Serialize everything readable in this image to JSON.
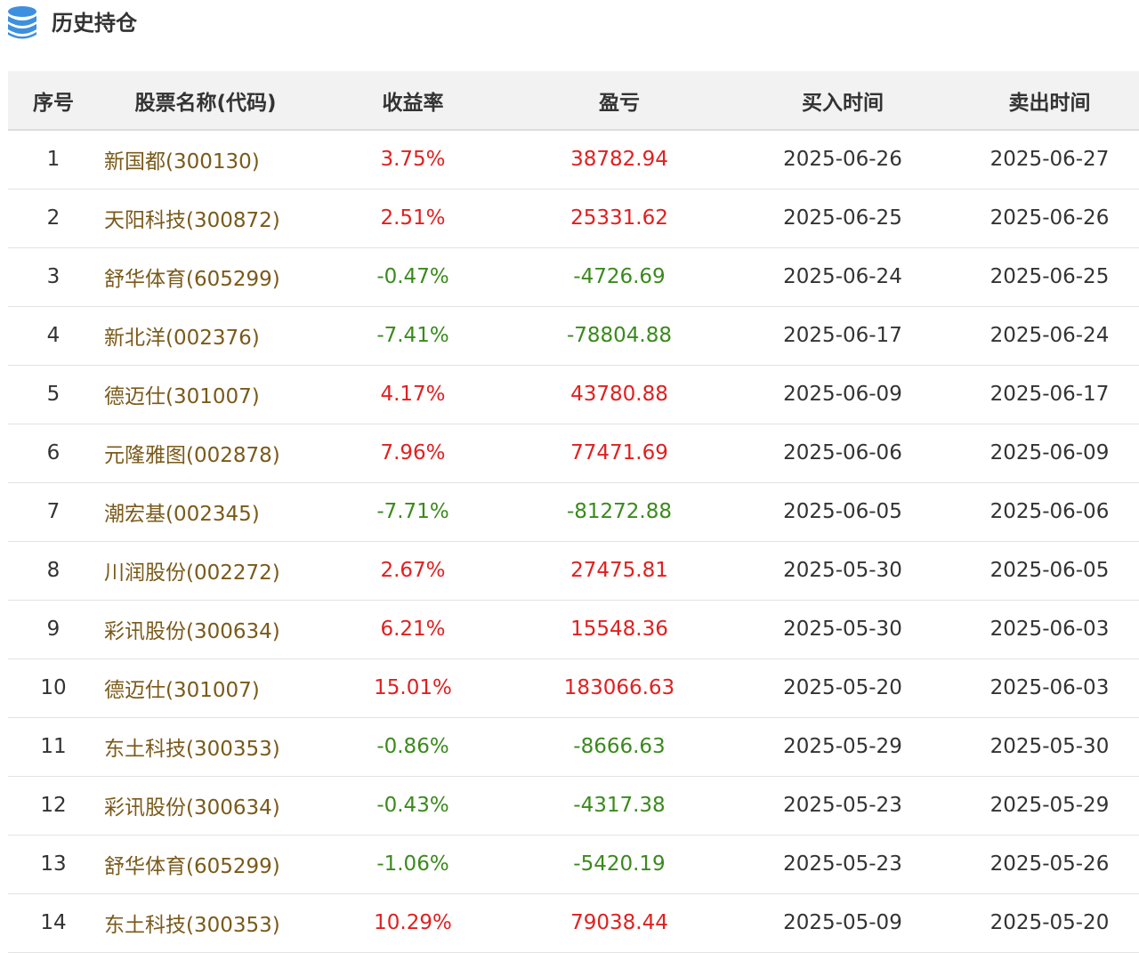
{
  "page": {
    "title": "历史持仓",
    "icon": "database-icon"
  },
  "colors": {
    "up": "#e02020",
    "down": "#3a8a1c",
    "stock_name": "#7a5a1a",
    "header_bg": "#f2f2f2",
    "icon_blue": "#3d8fe0"
  },
  "table": {
    "headers": [
      "序号",
      "股票名称(代码)",
      "收益率",
      "盈亏",
      "买入时间",
      "卖出时间"
    ],
    "rows": [
      {
        "idx": "1",
        "name": "新国都(300130)",
        "rate": "3.75%",
        "pnl": "38782.94",
        "buy": "2025-06-26",
        "sell": "2025-06-27",
        "trend": "up"
      },
      {
        "idx": "2",
        "name": "天阳科技(300872)",
        "rate": "2.51%",
        "pnl": "25331.62",
        "buy": "2025-06-25",
        "sell": "2025-06-26",
        "trend": "up"
      },
      {
        "idx": "3",
        "name": "舒华体育(605299)",
        "rate": "-0.47%",
        "pnl": "-4726.69",
        "buy": "2025-06-24",
        "sell": "2025-06-25",
        "trend": "down"
      },
      {
        "idx": "4",
        "name": "新北洋(002376)",
        "rate": "-7.41%",
        "pnl": "-78804.88",
        "buy": "2025-06-17",
        "sell": "2025-06-24",
        "trend": "down"
      },
      {
        "idx": "5",
        "name": "德迈仕(301007)",
        "rate": "4.17%",
        "pnl": "43780.88",
        "buy": "2025-06-09",
        "sell": "2025-06-17",
        "trend": "up"
      },
      {
        "idx": "6",
        "name": "元隆雅图(002878)",
        "rate": "7.96%",
        "pnl": "77471.69",
        "buy": "2025-06-06",
        "sell": "2025-06-09",
        "trend": "up"
      },
      {
        "idx": "7",
        "name": "潮宏基(002345)",
        "rate": "-7.71%",
        "pnl": "-81272.88",
        "buy": "2025-06-05",
        "sell": "2025-06-06",
        "trend": "down"
      },
      {
        "idx": "8",
        "name": "川润股份(002272)",
        "rate": "2.67%",
        "pnl": "27475.81",
        "buy": "2025-05-30",
        "sell": "2025-06-05",
        "trend": "up"
      },
      {
        "idx": "9",
        "name": "彩讯股份(300634)",
        "rate": "6.21%",
        "pnl": "15548.36",
        "buy": "2025-05-30",
        "sell": "2025-06-03",
        "trend": "up"
      },
      {
        "idx": "10",
        "name": "德迈仕(301007)",
        "rate": "15.01%",
        "pnl": "183066.63",
        "buy": "2025-05-20",
        "sell": "2025-06-03",
        "trend": "up"
      },
      {
        "idx": "11",
        "name": "东土科技(300353)",
        "rate": "-0.86%",
        "pnl": "-8666.63",
        "buy": "2025-05-29",
        "sell": "2025-05-30",
        "trend": "down"
      },
      {
        "idx": "12",
        "name": "彩讯股份(300634)",
        "rate": "-0.43%",
        "pnl": "-4317.38",
        "buy": "2025-05-23",
        "sell": "2025-05-29",
        "trend": "down"
      },
      {
        "idx": "13",
        "name": "舒华体育(605299)",
        "rate": "-1.06%",
        "pnl": "-5420.19",
        "buy": "2025-05-23",
        "sell": "2025-05-26",
        "trend": "down"
      },
      {
        "idx": "14",
        "name": "东土科技(300353)",
        "rate": "10.29%",
        "pnl": "79038.44",
        "buy": "2025-05-09",
        "sell": "2025-05-20",
        "trend": "up"
      }
    ]
  }
}
